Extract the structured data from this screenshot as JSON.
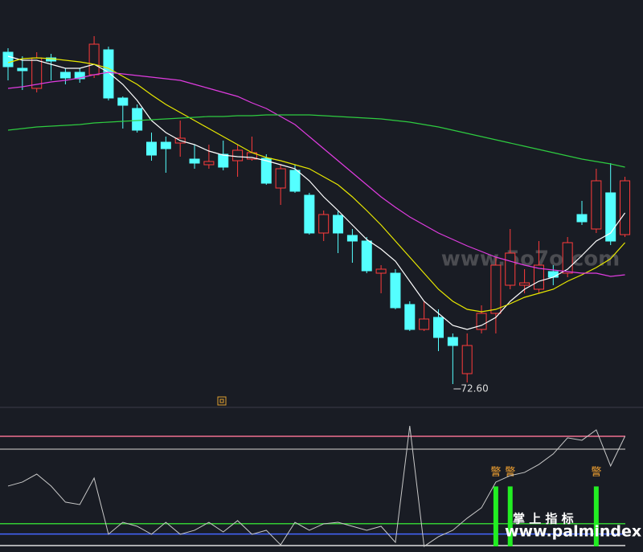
{
  "chart_data": [
    {
      "type": "candlestick",
      "up_color": "#ff3b3b",
      "down_color": "#54ffff",
      "flat_color": "#ffffff",
      "open": [
        113.9,
        111.9,
        109.4,
        113.2,
        111.4,
        111.4,
        111.1,
        114.2,
        108.2,
        106.9,
        102.7,
        102.7,
        102.6,
        100.6,
        99.9,
        101.2,
        100.4,
        100.6,
        100.7,
        97.0,
        99.2,
        96.1,
        91.4,
        93.6,
        91.1,
        90.4,
        86.4,
        86.4,
        82.5,
        79.4,
        80.9,
        78.4,
        73.9,
        79.4,
        81.4,
        84.9,
        84.9,
        84.4,
        86.6,
        86.4,
        93.7,
        91.9,
        96.4,
        91.2
      ],
      "high": [
        114.4,
        113.4,
        113.9,
        113.7,
        111.9,
        111.9,
        115.9,
        114.6,
        108.4,
        107.4,
        103.9,
        103.4,
        105.4,
        102.4,
        102.4,
        102.9,
        102.4,
        103.4,
        101.2,
        99.9,
        99.9,
        96.4,
        94.2,
        94.1,
        91.9,
        90.9,
        87.4,
        86.9,
        82.9,
        82.9,
        81.9,
        78.9,
        78.9,
        82.4,
        88.4,
        91.9,
        86.9,
        90.4,
        87.4,
        90.9,
        95.4,
        99.4,
        100.1,
        98.4
      ],
      "low": [
        110.4,
        109.2,
        108.9,
        110.4,
        109.9,
        110.1,
        110.7,
        107.9,
        104.4,
        103.9,
        100.4,
        98.9,
        100.9,
        99.4,
        99.4,
        99.2,
        98.4,
        100.4,
        97.4,
        94.9,
        96.4,
        91.2,
        90.4,
        88.9,
        87.7,
        86.4,
        83.9,
        81.9,
        79.2,
        79.2,
        76.7,
        72.6,
        72.8,
        78.9,
        78.9,
        84.4,
        83.9,
        83.9,
        84.9,
        85.9,
        92.4,
        91.4,
        89.9,
        90.9
      ],
      "close": [
        112.1,
        111.6,
        113.2,
        112.8,
        110.7,
        110.6,
        114.9,
        108.2,
        107.3,
        104.2,
        101.1,
        101.9,
        103.2,
        100.1,
        100.3,
        99.6,
        101.7,
        101.4,
        97.6,
        99.4,
        96.6,
        91.4,
        93.7,
        91.4,
        90.4,
        86.7,
        86.9,
        82.1,
        79.4,
        80.7,
        78.4,
        77.4,
        77.4,
        81.4,
        87.4,
        88.9,
        85.2,
        87.4,
        85.9,
        90.2,
        92.8,
        97.9,
        90.4,
        97.9
      ],
      "lines": [
        {
          "color": "#ffffff",
          "values": [
            113.4,
            112.9,
            112.9,
            112.4,
            111.9,
            111.9,
            112.4,
            111.4,
            109.9,
            107.9,
            105.4,
            103.9,
            102.9,
            102.4,
            101.6,
            101.1,
            100.9,
            100.8,
            100.4,
            99.9,
            99.4,
            97.9,
            95.9,
            94.2,
            92.4,
            90.6,
            89.4,
            87.9,
            85.4,
            82.9,
            81.4,
            79.9,
            79.4,
            79.9,
            80.9,
            82.9,
            84.4,
            85.4,
            85.9,
            86.9,
            88.6,
            90.4,
            91.4,
            93.9
          ]
        },
        {
          "color": "#e8e800",
          "values": [
            112.6,
            113.1,
            113.2,
            113.1,
            112.9,
            112.7,
            112.4,
            111.9,
            110.9,
            109.9,
            108.6,
            107.4,
            106.4,
            105.4,
            104.4,
            103.4,
            102.4,
            101.4,
            100.8,
            100.4,
            99.9,
            99.4,
            98.4,
            97.4,
            95.9,
            94.2,
            92.4,
            90.4,
            88.4,
            86.4,
            84.4,
            82.9,
            81.9,
            81.6,
            81.9,
            82.6,
            83.4,
            83.9,
            84.4,
            85.4,
            86.2,
            87.1,
            88.2,
            90.2
          ]
        },
        {
          "color": "#e03ce0",
          "values": [
            109.4,
            109.6,
            109.9,
            110.2,
            110.4,
            110.7,
            111.1,
            111.4,
            111.2,
            111.0,
            110.8,
            110.6,
            110.4,
            109.9,
            109.4,
            108.9,
            108.4,
            107.6,
            106.9,
            105.9,
            104.9,
            103.4,
            101.9,
            100.4,
            98.9,
            97.4,
            95.9,
            94.6,
            93.4,
            92.4,
            91.4,
            90.6,
            89.8,
            89.1,
            88.4,
            87.9,
            87.4,
            87.0,
            86.8,
            86.6,
            86.4,
            86.4,
            86.0,
            86.2
          ]
        },
        {
          "color": "#2ecc40",
          "values": [
            104.2,
            104.4,
            104.6,
            104.7,
            104.8,
            104.9,
            105.1,
            105.2,
            105.3,
            105.4,
            105.5,
            105.6,
            105.7,
            105.8,
            105.9,
            105.9,
            106.0,
            106.0,
            106.1,
            106.1,
            106.1,
            106.1,
            106.0,
            105.9,
            105.8,
            105.7,
            105.6,
            105.4,
            105.2,
            104.9,
            104.6,
            104.2,
            103.8,
            103.4,
            103.0,
            102.6,
            102.2,
            101.8,
            101.4,
            101.0,
            100.6,
            100.3,
            100.0,
            99.6
          ]
        }
      ],
      "annotation": {
        "value": 72.6,
        "label": "72.60"
      },
      "ylim": [
        70,
        117.5
      ]
    },
    {
      "type": "line",
      "color": "#c8c8c8",
      "values": [
        51.3,
        54.4,
        60.6,
        51.3,
        38.8,
        36.9,
        57.5,
        13.8,
        23.1,
        20.0,
        13.8,
        23.1,
        13.8,
        16.9,
        23.1,
        15.6,
        24.4,
        13.8,
        16.9,
        5.6,
        23.1,
        16.9,
        21.9,
        23.1,
        20.0,
        16.9,
        20.0,
        7.5,
        98.1,
        4.4,
        11.9,
        16.9,
        26.3,
        34.4,
        54.4,
        59.4,
        61.9,
        68.1,
        76.3,
        88.8,
        86.9,
        95.0,
        66.9,
        90.0
      ],
      "levels": [
        {
          "value": 90,
          "color": "#f07090"
        },
        {
          "value": 80,
          "color": "#9a9a9a"
        },
        {
          "value": 22,
          "color": "#33cc33"
        },
        {
          "value": 14,
          "color": "#4466ff"
        },
        {
          "value": 5,
          "color": "#dddddd"
        }
      ],
      "bars": {
        "color": "#22ee22",
        "values": [
          null,
          null,
          null,
          null,
          null,
          null,
          null,
          null,
          null,
          null,
          null,
          null,
          null,
          null,
          null,
          null,
          null,
          null,
          null,
          null,
          null,
          null,
          null,
          null,
          null,
          null,
          null,
          null,
          null,
          null,
          null,
          null,
          null,
          null,
          51,
          51,
          null,
          null,
          null,
          null,
          null,
          51,
          null,
          null
        ]
      },
      "bar_labels": [
        null,
        null,
        null,
        null,
        null,
        null,
        null,
        null,
        null,
        null,
        null,
        null,
        null,
        null,
        null,
        null,
        null,
        null,
        null,
        null,
        null,
        null,
        null,
        null,
        null,
        null,
        null,
        null,
        null,
        null,
        null,
        null,
        null,
        null,
        "警",
        "警",
        null,
        null,
        null,
        null,
        null,
        "警",
        null,
        null
      ],
      "ylim": [
        0,
        100
      ]
    }
  ],
  "watermark": "www.5o7o.com",
  "footer": {
    "title": "掌 上 指 标",
    "url": "www.palmindex.com"
  }
}
